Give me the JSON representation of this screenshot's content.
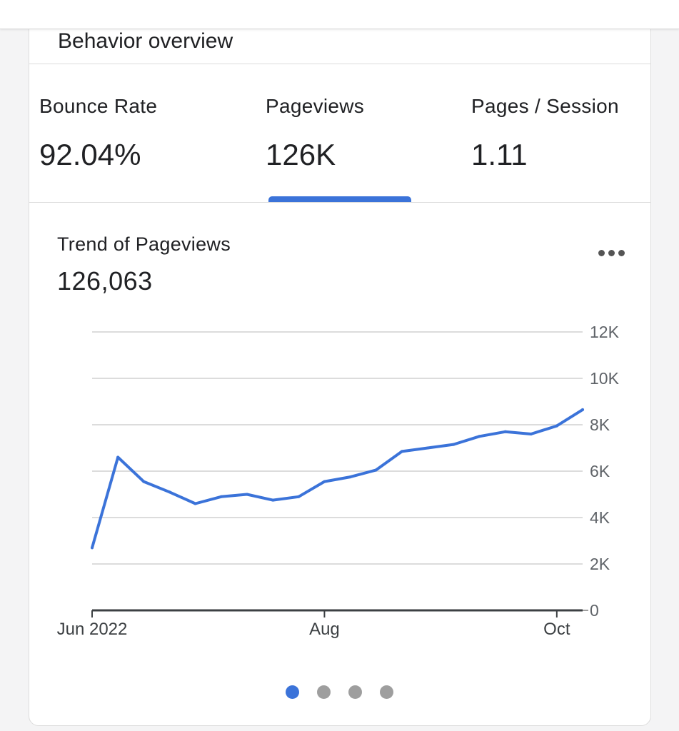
{
  "card": {
    "title": "Behavior overview"
  },
  "metrics": [
    {
      "label": "Bounce Rate",
      "value": "92.04%"
    },
    {
      "label": "Pageviews",
      "value": "126K"
    },
    {
      "label": "Pages / Session",
      "value": "1.11"
    }
  ],
  "selected_metric_index": 1,
  "trend": {
    "title": "Trend of Pageviews",
    "total": "126,063"
  },
  "colors": {
    "accent": "#3b73d9",
    "grid": "#dcdcdc",
    "text": "#202124",
    "pager_inactive": "#9e9e9e"
  },
  "icons": {
    "more": "more-horizontal-icon"
  },
  "chart_data": {
    "type": "line",
    "title": "Trend of Pageviews",
    "xlabel": "",
    "ylabel": "",
    "ylim": [
      0,
      12000
    ],
    "y_ticks": [
      {
        "value": 0,
        "label": "0"
      },
      {
        "value": 2000,
        "label": "2K"
      },
      {
        "value": 4000,
        "label": "4K"
      },
      {
        "value": 6000,
        "label": "6K"
      },
      {
        "value": 8000,
        "label": "8K"
      },
      {
        "value": 10000,
        "label": "10K"
      },
      {
        "value": 12000,
        "label": "12K"
      }
    ],
    "x_ticks": [
      {
        "week": 0,
        "label": "Jun 2022"
      },
      {
        "week": 9,
        "label": "Aug"
      },
      {
        "week": 18,
        "label": "Oct"
      }
    ],
    "weeks": 20,
    "grid": true,
    "legend": "none",
    "series": [
      {
        "color": "#3b73d9",
        "values": [
          2700,
          6600,
          5550,
          5100,
          4600,
          4900,
          5000,
          4750,
          4900,
          5550,
          5750,
          6050,
          6850,
          7000,
          7150,
          7500,
          7700,
          7600,
          7950,
          8650
        ]
      }
    ]
  },
  "pager": {
    "count": 4,
    "active": 0
  }
}
